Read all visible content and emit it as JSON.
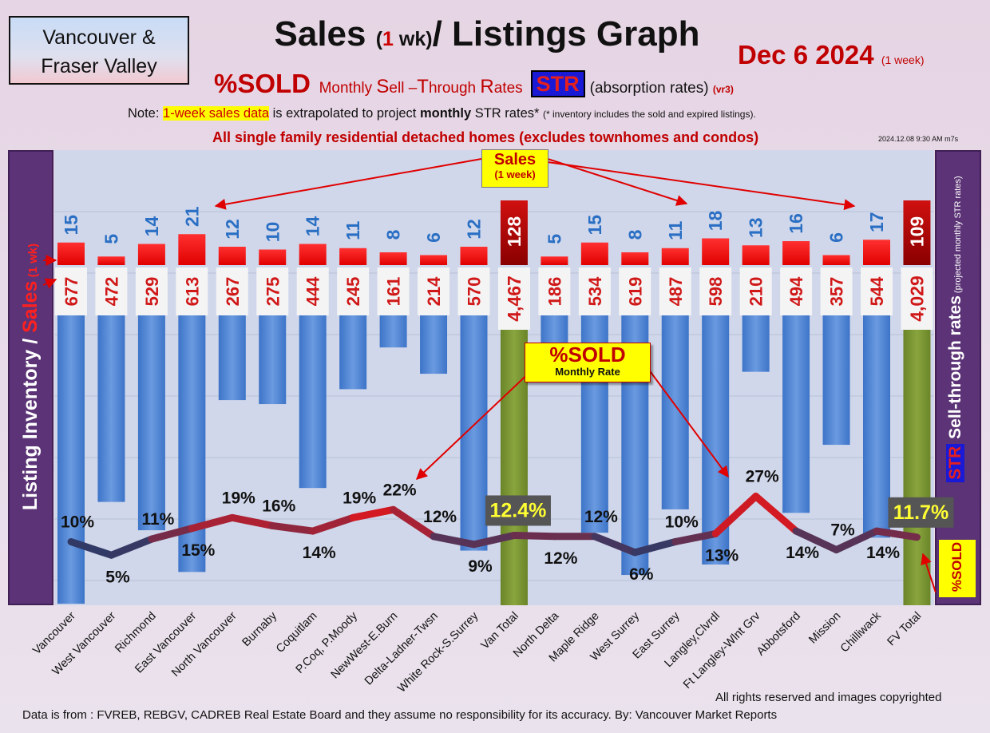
{
  "header": {
    "region_line1": "Vancouver &",
    "region_line2": "Fraser Valley",
    "title_a": "Sales",
    "title_b": "(",
    "title_c": "1",
    "title_d": " wk)",
    "title_e": "/ Listings Graph",
    "date": "Dec 6  2024",
    "date_note": "(1 week)",
    "subtitle_a": "%SOLD",
    "subtitle_m": "Monthly ",
    "subtitle_S": "S",
    "subtitle_ell": "ell –",
    "subtitle_T": "T",
    "subtitle_hrough": "hrough ",
    "subtitle_R": "R",
    "subtitle_ates": "ates",
    "str_badge": "STR",
    "absorption": "(absorption rates)",
    "version": "(vr3)",
    "note_prefix": "Note: ",
    "note_highlight": "1-week sales data",
    "note_mid": " is extrapolated to project ",
    "note_bold": "monthly",
    "note_after": " STR rates* ",
    "note_small": "(* inventory includes the sold and expired listings).",
    "scope": "All single family residential detached homes (excludes townhomes and condos)",
    "timestamp": "2024.12.08 9:30 AM m7s"
  },
  "side_labels": {
    "left_a": "Listing Inventory",
    "left_slash": " / ",
    "left_sales": "Sales",
    "left_sm": " (1 wk)",
    "right_str": "STR",
    "right_main": " Sell-through rates",
    "right_sm": " (projected monthly STR rates)",
    "sold_vertical": "%SOLD"
  },
  "callouts": {
    "sales_a": "Sales",
    "sales_b": "(1 week)",
    "sold_a": "%SOLD",
    "sold_b": "Monthly Rate"
  },
  "footer": {
    "rights": "All rights reserved and  images copyrighted",
    "source": "Data is from : FVREB, REBGV, CADREB Real Estate Board and they assume no responsibility for its accuracy. By: Vancouver Market Reports"
  },
  "colors": {
    "inventory_bar": "#5b8fd6",
    "total_bar": "#7a9632",
    "sales_bar": "#ff1a1a",
    "total_sales_bar": "#b50000",
    "inventory_label": "#d01818",
    "sales_label": "#2a6fc4",
    "line_low": "#1e3e6e",
    "line_high": "#ff1010"
  },
  "chart_data": {
    "type": "bar",
    "categories": [
      "Vancouver",
      "West Vancouver",
      "Richmond",
      "East Vancouver",
      "North Vancouver",
      "Burnaby",
      "Coquitlam",
      "P.Coq, P.Moody",
      "NewWest-E.Burn",
      "Delta-Ladner-Twsn",
      "White Rock-S.Surrey",
      "Van Total",
      "North Delta",
      "Maple Ridge",
      "West Surrey",
      "East Surrey",
      "Langley,Clvrdl",
      "Ft Langley-Wlnt Grv",
      "Abbotsford",
      "Mission",
      "Chilliwack",
      "FV Total"
    ],
    "series": [
      {
        "name": "Listing Inventory",
        "values": [
          677,
          472,
          529,
          613,
          267,
          275,
          444,
          245,
          161,
          214,
          570,
          4467,
          186,
          534,
          619,
          487,
          598,
          210,
          494,
          357,
          544,
          4029
        ],
        "labels": [
          "677",
          "472",
          "529",
          "613",
          "267",
          "275",
          "444",
          "245",
          "161",
          "214",
          "570",
          "4,467",
          "186",
          "534",
          "619",
          "487",
          "598",
          "210",
          "494",
          "357",
          "544",
          "4,029"
        ]
      },
      {
        "name": "Sales",
        "values": [
          15,
          5,
          14,
          21,
          12,
          10,
          14,
          11,
          8,
          6,
          12,
          128,
          5,
          15,
          8,
          11,
          18,
          13,
          16,
          6,
          17,
          109
        ]
      },
      {
        "name": "%SOLD",
        "values": [
          10,
          5,
          11,
          15,
          19,
          16,
          14,
          19,
          22,
          12,
          9,
          12.4,
          12,
          12,
          6,
          10,
          13,
          27,
          14,
          7,
          14,
          11.7
        ],
        "labels": [
          "10%",
          "5%",
          "11%",
          "15%",
          "19%",
          "16%",
          "14%",
          "19%",
          "22%",
          "12%",
          "9%",
          "12.4%",
          "12%",
          "12%",
          "6%",
          "10%",
          "13%",
          "27%",
          "14%",
          "7%",
          "14%",
          "11.7%"
        ]
      }
    ]
  }
}
